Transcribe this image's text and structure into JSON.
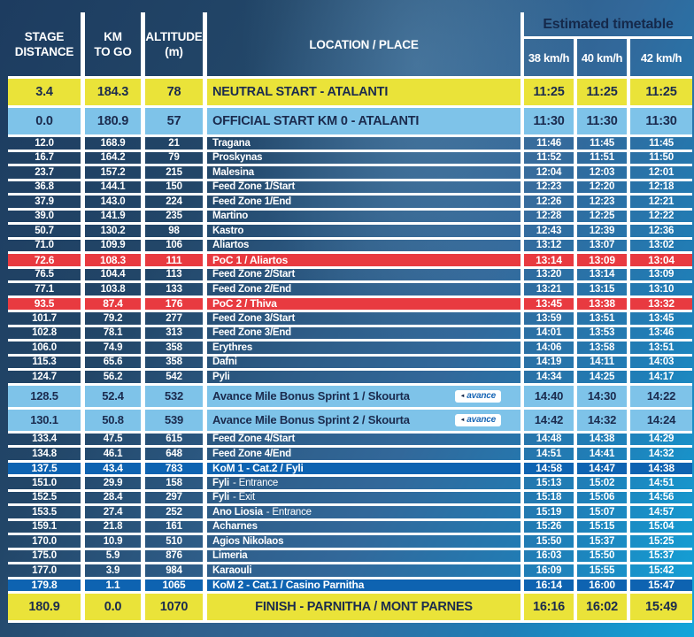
{
  "header": {
    "stage": [
      "STAGE",
      "DISTANCE"
    ],
    "km_to_go": [
      "KM",
      "TO GO"
    ],
    "altitude": [
      "ALTITUDE",
      "(m)"
    ],
    "location": "LOCATION / PLACE",
    "estimated": "Estimated timetable",
    "speeds": [
      "38 km/h",
      "40 km/h",
      "42 km/h"
    ]
  },
  "colors": {
    "highlight_yellow": "#EAE339",
    "highlight_light_blue": "#7EC3E9",
    "poc_red": "#E83A40",
    "kom_blue": "#0E63B1",
    "dark_navy_text": "#1B2B4E",
    "background_navy": "#1D3C60",
    "background_cyan": "#12A6DB",
    "gridline_white": "#FFFFFF"
  },
  "rows": [
    {
      "type": "neutral",
      "dist": "3.4",
      "togo": "184.3",
      "alt": "78",
      "loc": "NEUTRAL START - ATALANTI",
      "t38": "11:25",
      "t40": "11:25",
      "t42": "11:25"
    },
    {
      "type": "official",
      "dist": "0.0",
      "togo": "180.9",
      "alt": "57",
      "loc": "OFFICIAL START KM 0 - ATALANTI",
      "t38": "11:30",
      "t40": "11:30",
      "t42": "11:30"
    },
    {
      "type": "normal",
      "dist": "12.0",
      "togo": "168.9",
      "alt": "21",
      "loc": "Tragana",
      "t38": "11:46",
      "t40": "11:45",
      "t42": "11:45"
    },
    {
      "type": "normal",
      "dist": "16.7",
      "togo": "164.2",
      "alt": "79",
      "loc": "Proskynas",
      "t38": "11:52",
      "t40": "11:51",
      "t42": "11:50"
    },
    {
      "type": "normal",
      "dist": "23.7",
      "togo": "157.2",
      "alt": "215",
      "loc": "Malesina",
      "t38": "12:04",
      "t40": "12:03",
      "t42": "12:01"
    },
    {
      "type": "normal",
      "dist": "36.8",
      "togo": "144.1",
      "alt": "150",
      "loc": "Feed Zone 1/Start",
      "t38": "12:23",
      "t40": "12:20",
      "t42": "12:18"
    },
    {
      "type": "normal",
      "dist": "37.9",
      "togo": "143.0",
      "alt": "224",
      "loc": "Feed Zone 1/End",
      "t38": "12:26",
      "t40": "12:23",
      "t42": "12:21"
    },
    {
      "type": "normal",
      "dist": "39.0",
      "togo": "141.9",
      "alt": "235",
      "loc": "Martino",
      "t38": "12:28",
      "t40": "12:25",
      "t42": "12:22"
    },
    {
      "type": "normal",
      "dist": "50.7",
      "togo": "130.2",
      "alt": "98",
      "loc": "Kastro",
      "t38": "12:43",
      "t40": "12:39",
      "t42": "12:36"
    },
    {
      "type": "normal",
      "dist": "71.0",
      "togo": "109.9",
      "alt": "106",
      "loc": "Aliartos",
      "t38": "13:12",
      "t40": "13:07",
      "t42": "13:02"
    },
    {
      "type": "poc",
      "dist": "72.6",
      "togo": "108.3",
      "alt": "111",
      "loc": "PoC 1 / Aliartos",
      "t38": "13:14",
      "t40": "13:09",
      "t42": "13:04"
    },
    {
      "type": "normal",
      "dist": "76.5",
      "togo": "104.4",
      "alt": "113",
      "loc": "Feed Zone 2/Start",
      "t38": "13:20",
      "t40": "13:14",
      "t42": "13:09"
    },
    {
      "type": "normal",
      "dist": "77.1",
      "togo": "103.8",
      "alt": "133",
      "loc": "Feed Zone 2/End",
      "t38": "13:21",
      "t40": "13:15",
      "t42": "13:10"
    },
    {
      "type": "poc",
      "dist": "93.5",
      "togo": "87.4",
      "alt": "176",
      "loc": "PoC 2 / Thiva",
      "t38": "13:45",
      "t40": "13:38",
      "t42": "13:32"
    },
    {
      "type": "normal",
      "dist": "101.7",
      "togo": "79.2",
      "alt": "277",
      "loc": "Feed Zone 3/Start",
      "t38": "13:59",
      "t40": "13:51",
      "t42": "13:45"
    },
    {
      "type": "normal",
      "dist": "102.8",
      "togo": "78.1",
      "alt": "313",
      "loc": "Feed Zone 3/End",
      "t38": "14:01",
      "t40": "13:53",
      "t42": "13:46"
    },
    {
      "type": "normal",
      "dist": "106.0",
      "togo": "74.9",
      "alt": "358",
      "loc": "Erythres",
      "t38": "14:06",
      "t40": "13:58",
      "t42": "13:51"
    },
    {
      "type": "normal",
      "dist": "115.3",
      "togo": "65.6",
      "alt": "358",
      "loc": "Dafni",
      "t38": "14:19",
      "t40": "14:11",
      "t42": "14:03"
    },
    {
      "type": "normal",
      "dist": "124.7",
      "togo": "56.2",
      "alt": "542",
      "loc": "Pyli",
      "t38": "14:34",
      "t40": "14:25",
      "t42": "14:17"
    },
    {
      "type": "avance",
      "dist": "128.5",
      "togo": "52.4",
      "alt": "532",
      "loc": "Avance Mile Bonus Sprint 1 / Skourta",
      "badge": "avance",
      "t38": "14:40",
      "t40": "14:30",
      "t42": "14:22"
    },
    {
      "type": "avance",
      "dist": "130.1",
      "togo": "50.8",
      "alt": "539",
      "loc": "Avance Mile Bonus Sprint 2 / Skourta",
      "badge": "avance",
      "t38": "14:42",
      "t40": "14:32",
      "t42": "14:24"
    },
    {
      "type": "normal",
      "dist": "133.4",
      "togo": "47.5",
      "alt": "615",
      "loc": "Feed Zone 4/Start",
      "t38": "14:48",
      "t40": "14:38",
      "t42": "14:29"
    },
    {
      "type": "normal",
      "dist": "134.8",
      "togo": "46.1",
      "alt": "648",
      "loc": "Feed Zone 4/End",
      "t38": "14:51",
      "t40": "14:41",
      "t42": "14:32"
    },
    {
      "type": "kom",
      "dist": "137.5",
      "togo": "43.4",
      "alt": "783",
      "loc": "KoM 1 - Cat.2 / Fyli",
      "t38": "14:58",
      "t40": "14:47",
      "t42": "14:38"
    },
    {
      "type": "normal",
      "dist": "151.0",
      "togo": "29.9",
      "alt": "158",
      "loc": "Fyli",
      "loc2": "- Entrance",
      "t38": "15:13",
      "t40": "15:02",
      "t42": "14:51"
    },
    {
      "type": "normal",
      "dist": "152.5",
      "togo": "28.4",
      "alt": "297",
      "loc": "Fyli",
      "loc2": "- Exit",
      "t38": "15:18",
      "t40": "15:06",
      "t42": "14:56"
    },
    {
      "type": "normal",
      "dist": "153.5",
      "togo": "27.4",
      "alt": "252",
      "loc": "Ano Liosia",
      "loc2": "- Entrance",
      "t38": "15:19",
      "t40": "15:07",
      "t42": "14:57"
    },
    {
      "type": "normal",
      "dist": "159.1",
      "togo": "21.8",
      "alt": "161",
      "loc": "Acharnes",
      "t38": "15:26",
      "t40": "15:15",
      "t42": "15:04"
    },
    {
      "type": "normal",
      "dist": "170.0",
      "togo": "10.9",
      "alt": "510",
      "loc": "Agios Nikolaos",
      "t38": "15:50",
      "t40": "15:37",
      "t42": "15:25"
    },
    {
      "type": "normal",
      "dist": "175.0",
      "togo": "5.9",
      "alt": "876",
      "loc": "Limeria",
      "t38": "16:03",
      "t40": "15:50",
      "t42": "15:37"
    },
    {
      "type": "normal",
      "dist": "177.0",
      "togo": "3.9",
      "alt": "984",
      "loc": "Karaouli",
      "t38": "16:09",
      "t40": "15:55",
      "t42": "15:42"
    },
    {
      "type": "kom",
      "dist": "179.8",
      "togo": "1.1",
      "alt": "1065",
      "loc": "KoM 2 - Cat.1 / Casino Parnitha",
      "t38": "16:14",
      "t40": "16:00",
      "t42": "15:47"
    },
    {
      "type": "finish",
      "dist": "180.9",
      "togo": "0.0",
      "alt": "1070",
      "loc": "FINISH - PARNITHA / MONT PARNES",
      "t38": "16:16",
      "t40": "16:02",
      "t42": "15:49"
    }
  ]
}
